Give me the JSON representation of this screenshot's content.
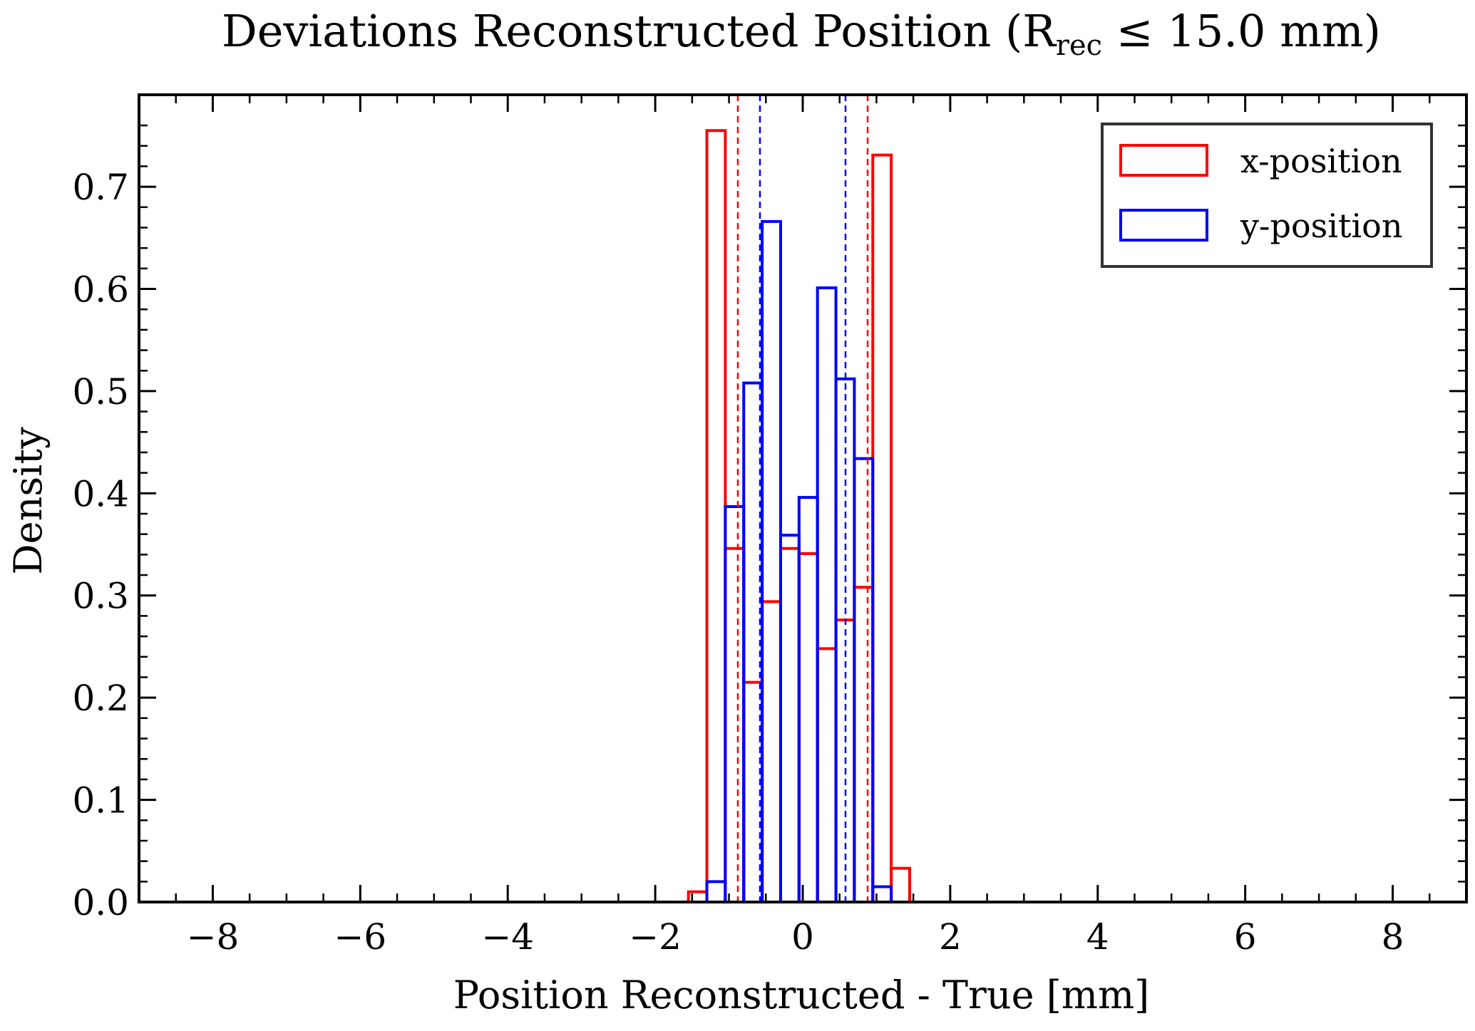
{
  "chart_data": {
    "type": "histogram",
    "title": "Deviations Reconstructed Position (R",
    "title_sub": "rec",
    "title_suffix": " ≤ 15.0 mm)",
    "xlabel": "Position Reconstructed - True [mm]",
    "ylabel": "Density",
    "xlim": [
      -9,
      9
    ],
    "ylim": [
      0,
      0.79
    ],
    "xticks": [
      -8,
      -6,
      -4,
      -2,
      0,
      2,
      4,
      6,
      8
    ],
    "xtick_labels": [
      "−8",
      "−6",
      "−4",
      "−2",
      "0",
      "2",
      "4",
      "6",
      "8"
    ],
    "yticks": [
      0.0,
      0.1,
      0.2,
      0.3,
      0.4,
      0.5,
      0.6,
      0.7
    ],
    "ytick_labels": [
      "0.0",
      "0.1",
      "0.2",
      "0.3",
      "0.4",
      "0.5",
      "0.6",
      "0.7"
    ],
    "legend_position": "top-right",
    "series": [
      {
        "name": "x-position",
        "color": "#ff0000",
        "bin_edges": [
          -1.55,
          -1.3,
          -1.05,
          -0.8,
          -0.55,
          -0.3,
          -0.05,
          0.2,
          0.45,
          0.7,
          0.95,
          1.2,
          1.45
        ],
        "values": [
          0.01,
          0.755,
          0.346,
          0.215,
          0.294,
          0.346,
          0.341,
          0.248,
          0.276,
          0.308,
          0.731,
          0.033
        ],
        "dashed_lines": [
          -0.88,
          0.88
        ]
      },
      {
        "name": "y-position",
        "color": "#0000ff",
        "bin_edges": [
          -1.3,
          -1.05,
          -0.8,
          -0.55,
          -0.3,
          -0.05,
          0.2,
          0.45,
          0.7,
          0.95,
          1.2
        ],
        "values": [
          0.02,
          0.387,
          0.508,
          0.666,
          0.359,
          0.396,
          0.601,
          0.512,
          0.434,
          0.015
        ],
        "dashed_lines": [
          -0.58,
          0.58
        ]
      }
    ]
  }
}
